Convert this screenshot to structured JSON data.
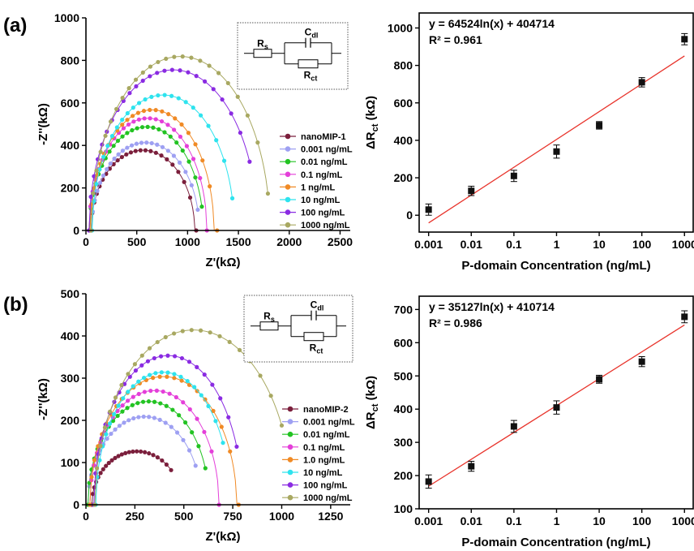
{
  "panel_labels": [
    "(a)",
    "(b)"
  ],
  "colors": {
    "axis": "#000000",
    "fit_line": "#e8332b",
    "points": "#111111",
    "series": [
      "#7b1f3c",
      "#9ea0f2",
      "#22c322",
      "#e43fd9",
      "#f08a25",
      "#2ee3ee",
      "#8a2be2",
      "#a8a861"
    ]
  },
  "circuit": {
    "rs": "R",
    "rs_sub": "s",
    "cdl": "C",
    "cdl_sub": "dl",
    "rct": "R",
    "rct_sub": "ct"
  },
  "chart_data": [
    {
      "id": "a-nyquist",
      "type": "scatter",
      "xlabel": "Z'(kΩ)",
      "ylabel": "-Z''(kΩ)",
      "xlim": [
        0,
        2600
      ],
      "ylim": [
        0,
        1000
      ],
      "xticks": [
        "0",
        "500",
        "1000",
        "1500",
        "2000",
        "2500"
      ],
      "yticks": [
        "0",
        "200",
        "400",
        "600",
        "800",
        "1000"
      ],
      "legend_position": "lower-right",
      "series": [
        {
          "name": "nanoMIP-1",
          "center": 560,
          "radius": 510,
          "depress": 0.74,
          "end_x": 1085
        },
        {
          "name": "0.001 ng/mL",
          "center": 585,
          "radius": 530,
          "depress": 0.78,
          "end_x": 1100
        },
        {
          "name": "0.01 ng/mL",
          "center": 595,
          "radius": 560,
          "depress": 0.87,
          "end_x": 1140
        },
        {
          "name": "0.1 ng/mL",
          "center": 610,
          "radius": 580,
          "depress": 0.91,
          "end_x": 1190
        },
        {
          "name": "1 ng/mL",
          "center": 650,
          "radius": 610,
          "depress": 0.93,
          "end_x": 1290
        },
        {
          "name": "10 ng/mL",
          "center": 760,
          "radius": 700,
          "depress": 0.91,
          "end_x": 1440
        },
        {
          "name": "100 ng/mL",
          "center": 860,
          "radius": 830,
          "depress": 0.91,
          "end_x": 1610
        },
        {
          "name": "1000 ng/mL",
          "center": 930,
          "radius": 880,
          "depress": 0.93,
          "end_x": 1790
        }
      ]
    },
    {
      "id": "a-linear",
      "type": "scatter",
      "xlabel": "P-domain Concentration (ng/mL)",
      "ylabel": "ΔR",
      "ylabel_sub": "ct",
      "ylabel_tail": " (kΩ)",
      "xscale": "log",
      "xlim": [
        0.0006,
        1600
      ],
      "ylim": [
        -90,
        1080
      ],
      "x": [
        0.001,
        0.01,
        0.1,
        1,
        10,
        100,
        1000
      ],
      "y": [
        30,
        130,
        210,
        340,
        480,
        710,
        940
      ],
      "err": [
        30,
        25,
        30,
        35,
        20,
        25,
        30
      ],
      "xticks": [
        "0.001",
        "0.01",
        "0.1",
        "1",
        "10",
        "100",
        "1000"
      ],
      "yticks": [
        "0",
        "200",
        "400",
        "600",
        "800",
        "1000"
      ],
      "fit": {
        "slope": 64524,
        "intercept": 404714
      },
      "equation": "y = 64524ln(x) + 404714",
      "r2": "R² = 0.961"
    },
    {
      "id": "b-nyquist",
      "type": "scatter",
      "xlabel": "Z'(kΩ)",
      "ylabel": "-Z''(kΩ)",
      "xlim": [
        0,
        1350
      ],
      "ylim": [
        0,
        500
      ],
      "xticks": [
        "0",
        "250",
        "500",
        "750",
        "1000",
        "1250"
      ],
      "yticks": [
        "0",
        "100",
        "200",
        "300",
        "400",
        "500"
      ],
      "legend_position": "lower-right",
      "series": [
        {
          "name": "nanoMIP-2",
          "center": 260,
          "radius": 230,
          "depress": 0.55,
          "end_x": 435
        },
        {
          "name": "0.001 ng/mL",
          "center": 300,
          "radius": 290,
          "depress": 0.72,
          "end_x": 560
        },
        {
          "name": "0.01 ng/mL",
          "center": 320,
          "radius": 310,
          "depress": 0.79,
          "end_x": 610
        },
        {
          "name": "0.1 ng/mL",
          "center": 350,
          "radius": 330,
          "depress": 0.82,
          "end_x": 680
        },
        {
          "name": "1.0 ng/mL",
          "center": 395,
          "radius": 375,
          "depress": 0.81,
          "end_x": 780
        },
        {
          "name": "10 ng/mL",
          "center": 395,
          "radius": 345,
          "depress": 0.91,
          "end_x": 700
        },
        {
          "name": "100 ng/mL",
          "center": 420,
          "radius": 380,
          "depress": 0.93,
          "end_x": 770
        },
        {
          "name": "1000 ng/mL",
          "center": 550,
          "radius": 505,
          "depress": 0.82,
          "end_x": 1000
        }
      ]
    },
    {
      "id": "b-linear",
      "type": "scatter",
      "xlabel": "P-domain Concentration (ng/mL)",
      "ylabel": "ΔR",
      "ylabel_sub": "ct",
      "ylabel_tail": " (kΩ)",
      "xscale": "log",
      "xlim": [
        0.0006,
        1600
      ],
      "ylim": [
        100,
        740
      ],
      "x": [
        0.001,
        0.01,
        0.1,
        1,
        10,
        100,
        1000
      ],
      "y": [
        182,
        228,
        348,
        405,
        490,
        543,
        678
      ],
      "err": [
        20,
        15,
        18,
        20,
        12,
        15,
        18
      ],
      "xticks": [
        "0.001",
        "0.01",
        "0.1",
        "1",
        "10",
        "100",
        "1000"
      ],
      "yticks": [
        "100",
        "200",
        "300",
        "400",
        "500",
        "600",
        "700"
      ],
      "fit": {
        "slope": 35127,
        "intercept": 410714
      },
      "equation": "y = 35127ln(x) + 410714",
      "r2": "R² = 0.986"
    }
  ]
}
